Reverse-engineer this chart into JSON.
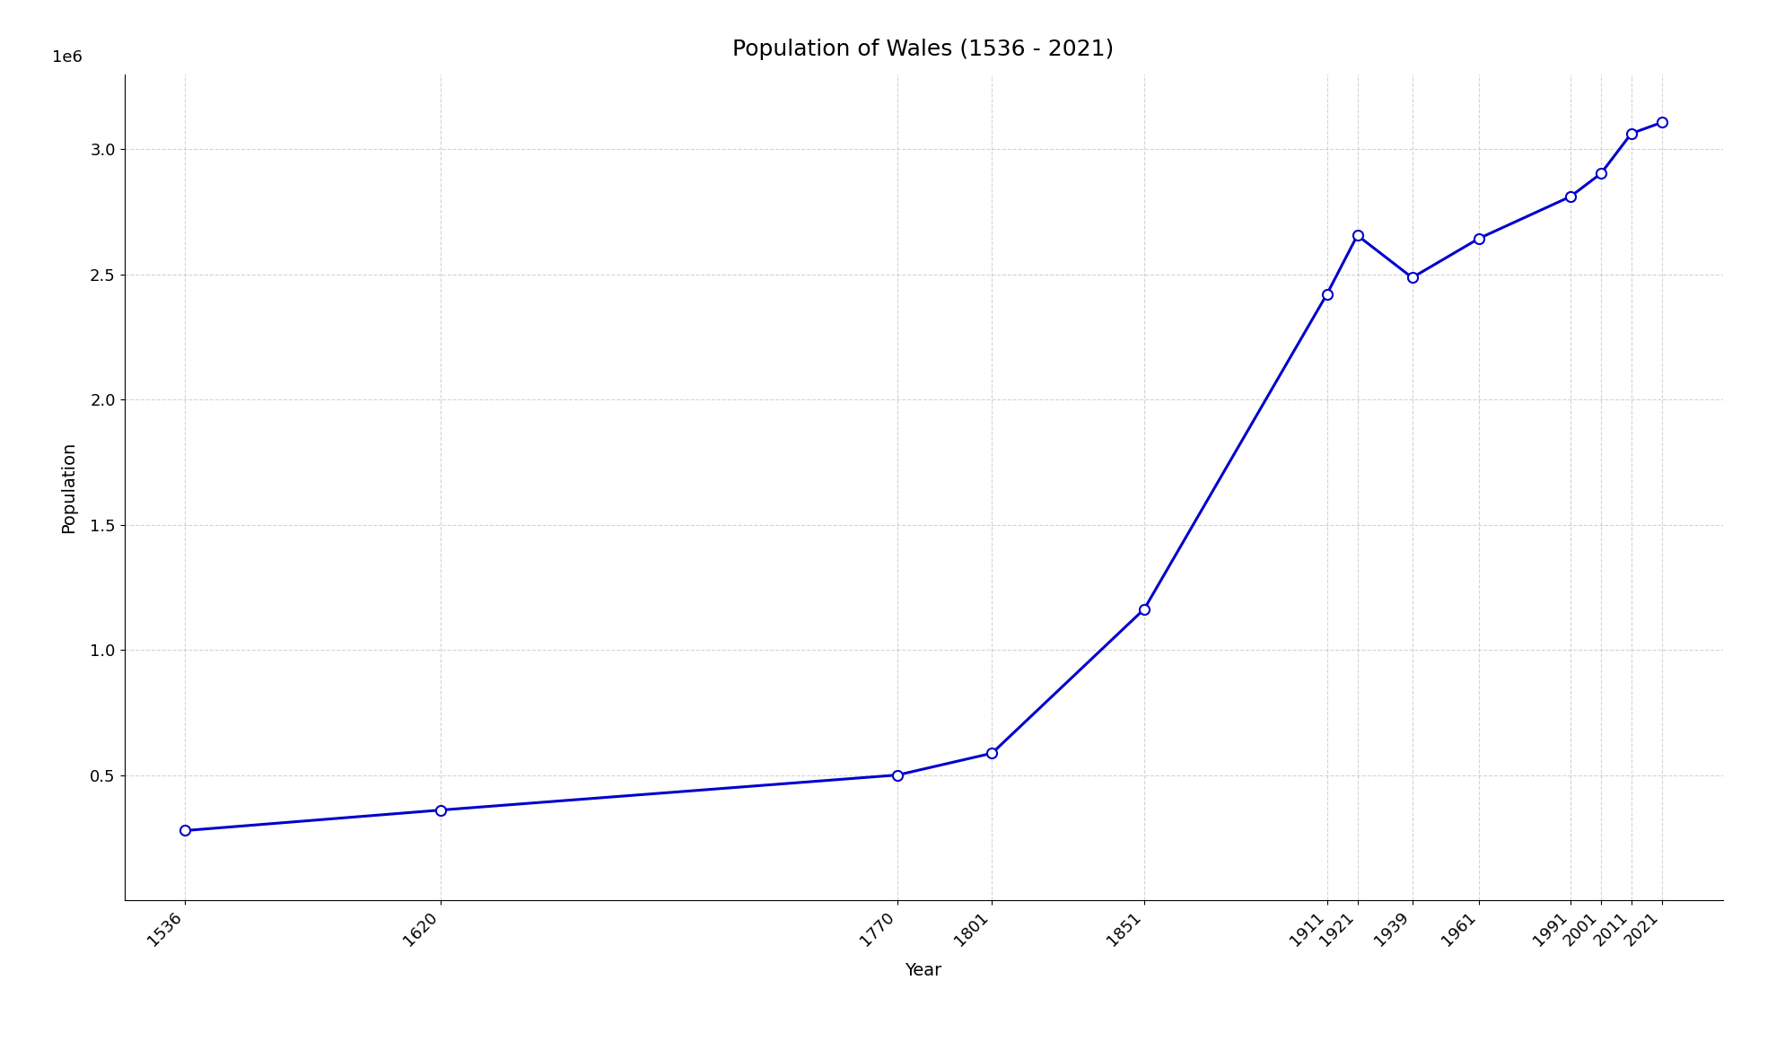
{
  "title": "Population of Wales (1536 - 2021)",
  "xlabel": "Year",
  "ylabel": "Population",
  "years": [
    1536,
    1620,
    1770,
    1801,
    1851,
    1911,
    1921,
    1939,
    1961,
    1991,
    2001,
    2011,
    2021
  ],
  "population": [
    278000,
    360000,
    500000,
    587000,
    1163000,
    2421000,
    2656000,
    2487000,
    2644000,
    2811000,
    2903000,
    3063000,
    3107000
  ],
  "line_color": "#0000cc",
  "marker": "o",
  "marker_size": 8,
  "line_width": 2.2,
  "grid_color": "#aaaaaa",
  "grid_style": "--",
  "grid_alpha": 0.5,
  "background_color": "#ffffff",
  "title_fontsize": 18,
  "label_fontsize": 14,
  "tick_fontsize": 13,
  "ylim": [
    0,
    3300000
  ],
  "ytick_values": [
    500000,
    1000000,
    1500000,
    2000000,
    2500000,
    3000000
  ],
  "ytick_labels": [
    "0.5",
    "1.0",
    "1.5",
    "2.0",
    "2.5",
    "3.0"
  ]
}
